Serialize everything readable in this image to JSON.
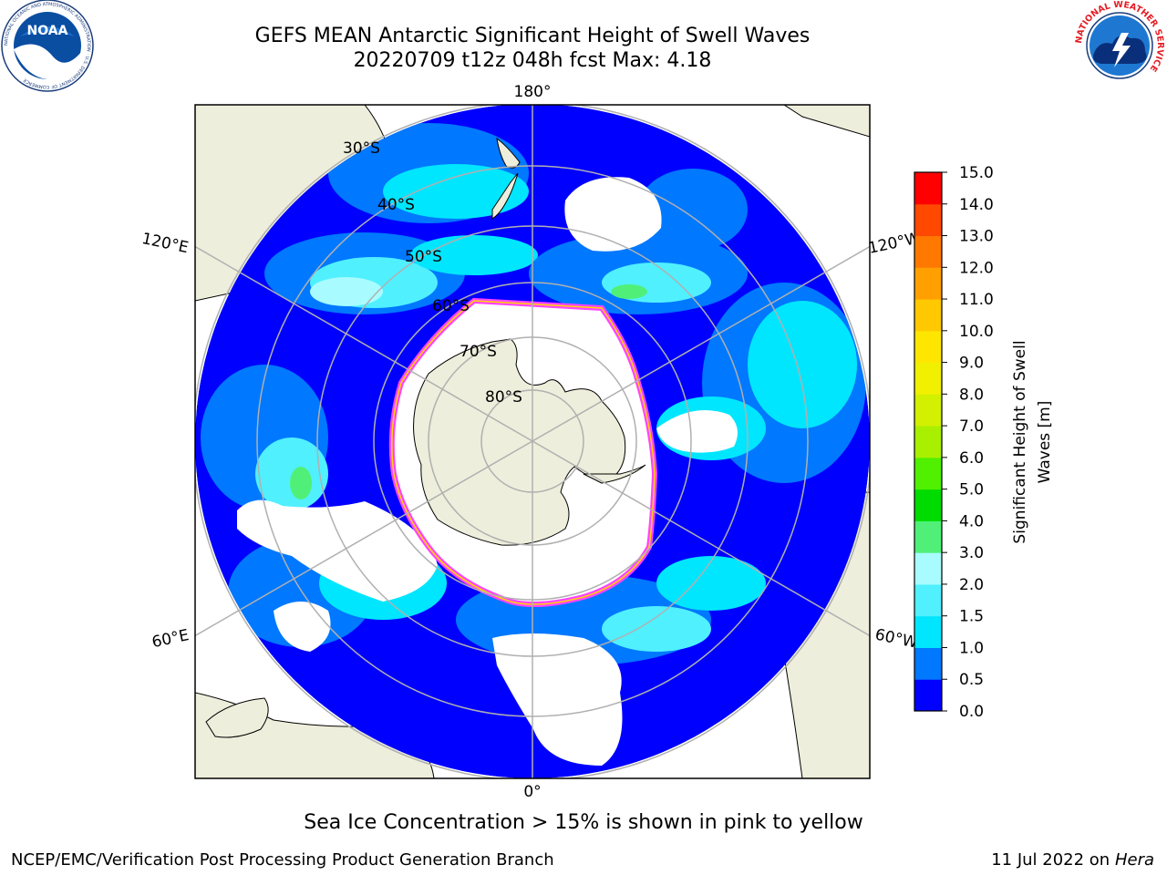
{
  "header": {
    "title_line1": "GEFS MEAN Antarctic Significant Height of Swell Waves",
    "title_line2": "20220709 t12z 048h fcst   Max: 4.18"
  },
  "logos": {
    "noaa": {
      "name": "noaa-logo",
      "text": "NOAA",
      "ring_text": "NATIONAL OCEANIC AND ATMOSPHERIC ADMINISTRATION · U.S. DEPARTMENT OF COMMERCE"
    },
    "nws": {
      "name": "nws-logo",
      "ring_text": "NATIONAL WEATHER SERVICE"
    }
  },
  "map": {
    "projection": "south-polar-stereographic",
    "longitude_labels": {
      "top": "180°",
      "left_upper": "120°E",
      "right_upper": "120°W",
      "left_lower": "60°E",
      "right_lower": "60°W",
      "bottom": "0°"
    },
    "latitude_labels": [
      "30°S",
      "40°S",
      "50°S",
      "60°S",
      "70°S",
      "80°S"
    ],
    "colors": {
      "land": "#eeeedc",
      "ice_edge_outer": "#ff44ff",
      "ice_edge_inner": "#ffd700",
      "gridline": "#b0b0b0"
    }
  },
  "colorbar": {
    "label_line1": "Significant Height of Swell",
    "label_line2": "Waves [m]",
    "ticks": [
      "0.0",
      "0.5",
      "1.0",
      "1.5",
      "2.0",
      "3.0",
      "4.0",
      "5.0",
      "6.0",
      "7.0",
      "8.0",
      "9.0",
      "10.0",
      "11.0",
      "12.0",
      "13.0",
      "14.0",
      "15.0"
    ],
    "colors": [
      "#0000ff",
      "#0078ff",
      "#00e6ff",
      "#50f0ff",
      "#a8fcff",
      "#50f078",
      "#00dc00",
      "#50f000",
      "#a8f000",
      "#d2f000",
      "#f0f000",
      "#ffe600",
      "#ffc800",
      "#ffa000",
      "#ff7800",
      "#ff4800",
      "#ff0000"
    ]
  },
  "notes": {
    "ice": "Sea Ice Concentration > 15% is shown in pink to yellow"
  },
  "footer": {
    "left": "NCEP/EMC/Verification Post Processing Product Generation Branch",
    "right_date": "11 Jul 2022 on",
    "right_host": "Hera"
  }
}
